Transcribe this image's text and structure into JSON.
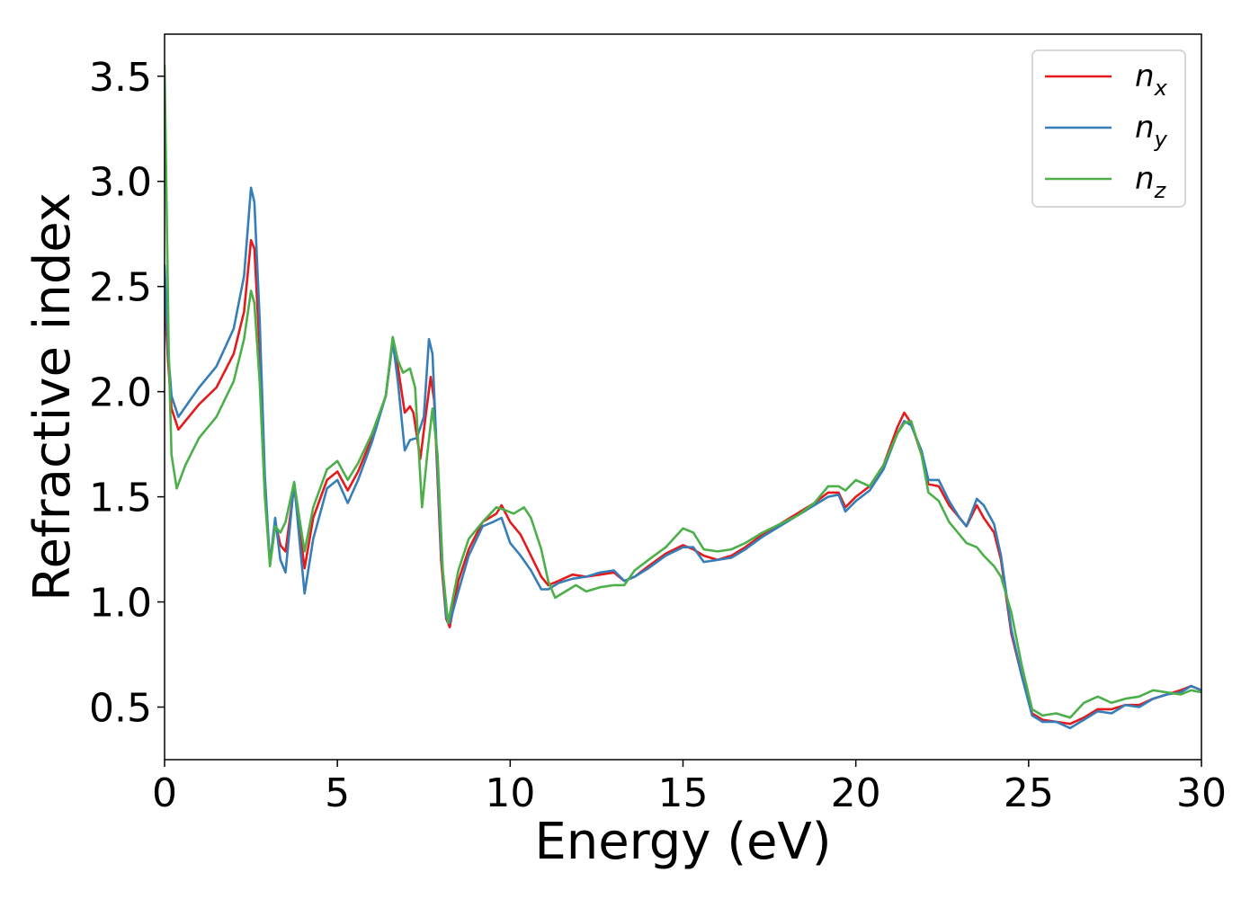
{
  "chart_data": {
    "type": "line",
    "title": "",
    "xlabel": "Energy (eV)",
    "ylabel": "Refractive index",
    "xlim": [
      0,
      30
    ],
    "ylim": [
      0.25,
      3.7
    ],
    "xticks": [
      0,
      5,
      10,
      15,
      20,
      25,
      30
    ],
    "xtick_labels": [
      "0",
      "5",
      "10",
      "15",
      "20",
      "25",
      "30"
    ],
    "yticks": [
      0.5,
      1.0,
      1.5,
      2.0,
      2.5,
      3.0,
      3.5
    ],
    "ytick_labels": [
      "0.5",
      "1.0",
      "1.5",
      "2.0",
      "2.5",
      "3.0",
      "3.5"
    ],
    "grid": false,
    "legend_position": "top-right",
    "series": [
      {
        "name": "n",
        "subscript": "x",
        "color": "#e41a1c",
        "points": [
          [
            0,
            2.45
          ],
          [
            0.1,
            2.15
          ],
          [
            0.2,
            1.92
          ],
          [
            0.4,
            1.82
          ],
          [
            0.7,
            1.88
          ],
          [
            1.0,
            1.94
          ],
          [
            1.5,
            2.02
          ],
          [
            2.0,
            2.18
          ],
          [
            2.3,
            2.38
          ],
          [
            2.5,
            2.72
          ],
          [
            2.6,
            2.68
          ],
          [
            2.75,
            2.2
          ],
          [
            2.9,
            1.55
          ],
          [
            3.05,
            1.18
          ],
          [
            3.2,
            1.38
          ],
          [
            3.35,
            1.27
          ],
          [
            3.5,
            1.24
          ],
          [
            3.75,
            1.55
          ],
          [
            3.9,
            1.35
          ],
          [
            4.05,
            1.16
          ],
          [
            4.3,
            1.4
          ],
          [
            4.7,
            1.58
          ],
          [
            5.0,
            1.62
          ],
          [
            5.3,
            1.53
          ],
          [
            5.6,
            1.62
          ],
          [
            6.0,
            1.78
          ],
          [
            6.4,
            1.98
          ],
          [
            6.6,
            2.24
          ],
          [
            6.75,
            2.12
          ],
          [
            6.95,
            1.9
          ],
          [
            7.1,
            1.93
          ],
          [
            7.2,
            1.9
          ],
          [
            7.4,
            1.68
          ],
          [
            7.55,
            1.88
          ],
          [
            7.7,
            2.07
          ],
          [
            7.8,
            1.96
          ],
          [
            8.0,
            1.2
          ],
          [
            8.15,
            0.92
          ],
          [
            8.25,
            0.88
          ],
          [
            8.5,
            1.1
          ],
          [
            8.8,
            1.25
          ],
          [
            9.2,
            1.38
          ],
          [
            9.6,
            1.42
          ],
          [
            9.75,
            1.46
          ],
          [
            10.0,
            1.38
          ],
          [
            10.3,
            1.32
          ],
          [
            10.6,
            1.22
          ],
          [
            10.9,
            1.12
          ],
          [
            11.1,
            1.08
          ],
          [
            11.4,
            1.1
          ],
          [
            11.8,
            1.13
          ],
          [
            12.2,
            1.12
          ],
          [
            12.6,
            1.13
          ],
          [
            13.0,
            1.14
          ],
          [
            13.3,
            1.1
          ],
          [
            13.6,
            1.12
          ],
          [
            14.0,
            1.17
          ],
          [
            14.5,
            1.23
          ],
          [
            15.0,
            1.27
          ],
          [
            15.3,
            1.25
          ],
          [
            15.6,
            1.22
          ],
          [
            16.0,
            1.2
          ],
          [
            16.4,
            1.22
          ],
          [
            16.8,
            1.26
          ],
          [
            17.3,
            1.32
          ],
          [
            17.8,
            1.37
          ],
          [
            18.3,
            1.42
          ],
          [
            18.8,
            1.47
          ],
          [
            19.2,
            1.52
          ],
          [
            19.5,
            1.52
          ],
          [
            19.7,
            1.45
          ],
          [
            20.0,
            1.5
          ],
          [
            20.4,
            1.55
          ],
          [
            20.8,
            1.65
          ],
          [
            21.2,
            1.83
          ],
          [
            21.4,
            1.9
          ],
          [
            21.6,
            1.85
          ],
          [
            21.9,
            1.7
          ],
          [
            22.1,
            1.56
          ],
          [
            22.4,
            1.55
          ],
          [
            22.7,
            1.46
          ],
          [
            23.0,
            1.4
          ],
          [
            23.2,
            1.36
          ],
          [
            23.5,
            1.46
          ],
          [
            23.7,
            1.4
          ],
          [
            24.0,
            1.33
          ],
          [
            24.2,
            1.2
          ],
          [
            24.5,
            0.85
          ],
          [
            24.8,
            0.65
          ],
          [
            25.1,
            0.47
          ],
          [
            25.4,
            0.44
          ],
          [
            25.8,
            0.43
          ],
          [
            26.2,
            0.42
          ],
          [
            26.6,
            0.45
          ],
          [
            27.0,
            0.49
          ],
          [
            27.4,
            0.49
          ],
          [
            27.8,
            0.51
          ],
          [
            28.2,
            0.51
          ],
          [
            28.6,
            0.54
          ],
          [
            29.0,
            0.56
          ],
          [
            29.4,
            0.58
          ],
          [
            29.7,
            0.6
          ],
          [
            30,
            0.58
          ]
        ]
      },
      {
        "name": "n",
        "subscript": "y",
        "color": "#377eb8",
        "points": [
          [
            0,
            2.6
          ],
          [
            0.1,
            2.2
          ],
          [
            0.2,
            1.98
          ],
          [
            0.4,
            1.88
          ],
          [
            0.7,
            1.95
          ],
          [
            1.0,
            2.02
          ],
          [
            1.5,
            2.12
          ],
          [
            2.0,
            2.3
          ],
          [
            2.3,
            2.55
          ],
          [
            2.5,
            2.97
          ],
          [
            2.6,
            2.9
          ],
          [
            2.75,
            2.35
          ],
          [
            2.9,
            1.6
          ],
          [
            3.05,
            1.18
          ],
          [
            3.2,
            1.4
          ],
          [
            3.35,
            1.2
          ],
          [
            3.5,
            1.14
          ],
          [
            3.75,
            1.57
          ],
          [
            3.9,
            1.3
          ],
          [
            4.05,
            1.04
          ],
          [
            4.3,
            1.3
          ],
          [
            4.7,
            1.54
          ],
          [
            5.0,
            1.58
          ],
          [
            5.3,
            1.47
          ],
          [
            5.6,
            1.58
          ],
          [
            6.0,
            1.76
          ],
          [
            6.4,
            1.98
          ],
          [
            6.6,
            2.24
          ],
          [
            6.75,
            2.05
          ],
          [
            6.95,
            1.72
          ],
          [
            7.1,
            1.77
          ],
          [
            7.3,
            1.78
          ],
          [
            7.5,
            1.88
          ],
          [
            7.65,
            2.25
          ],
          [
            7.75,
            2.18
          ],
          [
            8.0,
            1.25
          ],
          [
            8.15,
            0.93
          ],
          [
            8.25,
            0.9
          ],
          [
            8.5,
            1.05
          ],
          [
            8.8,
            1.22
          ],
          [
            9.2,
            1.36
          ],
          [
            9.5,
            1.38
          ],
          [
            9.75,
            1.4
          ],
          [
            10.0,
            1.28
          ],
          [
            10.3,
            1.22
          ],
          [
            10.6,
            1.15
          ],
          [
            10.9,
            1.06
          ],
          [
            11.1,
            1.06
          ],
          [
            11.4,
            1.09
          ],
          [
            11.8,
            1.11
          ],
          [
            12.2,
            1.12
          ],
          [
            12.6,
            1.14
          ],
          [
            13.0,
            1.15
          ],
          [
            13.3,
            1.1
          ],
          [
            13.6,
            1.12
          ],
          [
            14.0,
            1.16
          ],
          [
            14.5,
            1.22
          ],
          [
            15.0,
            1.26
          ],
          [
            15.3,
            1.26
          ],
          [
            15.6,
            1.19
          ],
          [
            16.0,
            1.2
          ],
          [
            16.4,
            1.21
          ],
          [
            16.8,
            1.25
          ],
          [
            17.3,
            1.31
          ],
          [
            17.8,
            1.36
          ],
          [
            18.3,
            1.41
          ],
          [
            18.8,
            1.46
          ],
          [
            19.2,
            1.5
          ],
          [
            19.5,
            1.51
          ],
          [
            19.7,
            1.43
          ],
          [
            20.0,
            1.48
          ],
          [
            20.4,
            1.53
          ],
          [
            20.8,
            1.63
          ],
          [
            21.2,
            1.8
          ],
          [
            21.4,
            1.86
          ],
          [
            21.6,
            1.84
          ],
          [
            21.9,
            1.72
          ],
          [
            22.1,
            1.58
          ],
          [
            22.4,
            1.58
          ],
          [
            22.7,
            1.48
          ],
          [
            23.0,
            1.4
          ],
          [
            23.2,
            1.36
          ],
          [
            23.5,
            1.49
          ],
          [
            23.7,
            1.46
          ],
          [
            24.0,
            1.37
          ],
          [
            24.2,
            1.22
          ],
          [
            24.5,
            0.87
          ],
          [
            24.8,
            0.65
          ],
          [
            25.1,
            0.46
          ],
          [
            25.4,
            0.43
          ],
          [
            25.8,
            0.43
          ],
          [
            26.2,
            0.4
          ],
          [
            26.6,
            0.44
          ],
          [
            27.0,
            0.48
          ],
          [
            27.4,
            0.47
          ],
          [
            27.8,
            0.51
          ],
          [
            28.2,
            0.5
          ],
          [
            28.6,
            0.54
          ],
          [
            29.0,
            0.56
          ],
          [
            29.4,
            0.57
          ],
          [
            29.7,
            0.6
          ],
          [
            30,
            0.58
          ]
        ]
      },
      {
        "name": "n",
        "subscript": "z",
        "color": "#4daf4a",
        "points": [
          [
            0,
            3.55
          ],
          [
            0.05,
            3.0
          ],
          [
            0.12,
            2.2
          ],
          [
            0.2,
            1.7
          ],
          [
            0.35,
            1.54
          ],
          [
            0.6,
            1.65
          ],
          [
            1.0,
            1.78
          ],
          [
            1.5,
            1.88
          ],
          [
            2.0,
            2.05
          ],
          [
            2.3,
            2.25
          ],
          [
            2.5,
            2.48
          ],
          [
            2.6,
            2.42
          ],
          [
            2.75,
            2.05
          ],
          [
            2.9,
            1.5
          ],
          [
            3.05,
            1.17
          ],
          [
            3.2,
            1.36
          ],
          [
            3.35,
            1.33
          ],
          [
            3.5,
            1.38
          ],
          [
            3.75,
            1.57
          ],
          [
            3.9,
            1.4
          ],
          [
            4.05,
            1.24
          ],
          [
            4.3,
            1.45
          ],
          [
            4.7,
            1.63
          ],
          [
            5.0,
            1.67
          ],
          [
            5.3,
            1.58
          ],
          [
            5.6,
            1.66
          ],
          [
            6.0,
            1.8
          ],
          [
            6.4,
            1.98
          ],
          [
            6.6,
            2.26
          ],
          [
            6.75,
            2.15
          ],
          [
            6.9,
            2.09
          ],
          [
            7.1,
            2.11
          ],
          [
            7.25,
            2.02
          ],
          [
            7.45,
            1.45
          ],
          [
            7.6,
            1.7
          ],
          [
            7.75,
            1.92
          ],
          [
            7.9,
            1.7
          ],
          [
            8.05,
            1.15
          ],
          [
            8.2,
            0.9
          ],
          [
            8.5,
            1.15
          ],
          [
            8.8,
            1.3
          ],
          [
            9.2,
            1.38
          ],
          [
            9.6,
            1.45
          ],
          [
            9.8,
            1.44
          ],
          [
            10.1,
            1.42
          ],
          [
            10.4,
            1.45
          ],
          [
            10.6,
            1.4
          ],
          [
            10.9,
            1.25
          ],
          [
            11.1,
            1.1
          ],
          [
            11.3,
            1.02
          ],
          [
            11.6,
            1.05
          ],
          [
            11.9,
            1.08
          ],
          [
            12.2,
            1.05
          ],
          [
            12.6,
            1.07
          ],
          [
            13.0,
            1.08
          ],
          [
            13.3,
            1.08
          ],
          [
            13.6,
            1.15
          ],
          [
            14.0,
            1.2
          ],
          [
            14.5,
            1.26
          ],
          [
            15.0,
            1.35
          ],
          [
            15.3,
            1.33
          ],
          [
            15.6,
            1.25
          ],
          [
            16.0,
            1.24
          ],
          [
            16.4,
            1.25
          ],
          [
            16.8,
            1.28
          ],
          [
            17.3,
            1.33
          ],
          [
            17.8,
            1.37
          ],
          [
            18.3,
            1.41
          ],
          [
            18.8,
            1.47
          ],
          [
            19.2,
            1.55
          ],
          [
            19.5,
            1.55
          ],
          [
            19.7,
            1.53
          ],
          [
            20.0,
            1.58
          ],
          [
            20.4,
            1.55
          ],
          [
            20.8,
            1.65
          ],
          [
            21.2,
            1.8
          ],
          [
            21.4,
            1.85
          ],
          [
            21.6,
            1.86
          ],
          [
            21.9,
            1.7
          ],
          [
            22.1,
            1.52
          ],
          [
            22.4,
            1.48
          ],
          [
            22.7,
            1.38
          ],
          [
            23.0,
            1.32
          ],
          [
            23.2,
            1.28
          ],
          [
            23.5,
            1.26
          ],
          [
            23.7,
            1.22
          ],
          [
            24.0,
            1.17
          ],
          [
            24.2,
            1.12
          ],
          [
            24.5,
            0.95
          ],
          [
            24.8,
            0.7
          ],
          [
            25.1,
            0.49
          ],
          [
            25.4,
            0.46
          ],
          [
            25.8,
            0.47
          ],
          [
            26.2,
            0.45
          ],
          [
            26.6,
            0.52
          ],
          [
            27.0,
            0.55
          ],
          [
            27.4,
            0.52
          ],
          [
            27.8,
            0.54
          ],
          [
            28.2,
            0.55
          ],
          [
            28.6,
            0.58
          ],
          [
            29.0,
            0.57
          ],
          [
            29.4,
            0.56
          ],
          [
            29.7,
            0.58
          ],
          [
            30,
            0.57
          ]
        ]
      }
    ]
  }
}
